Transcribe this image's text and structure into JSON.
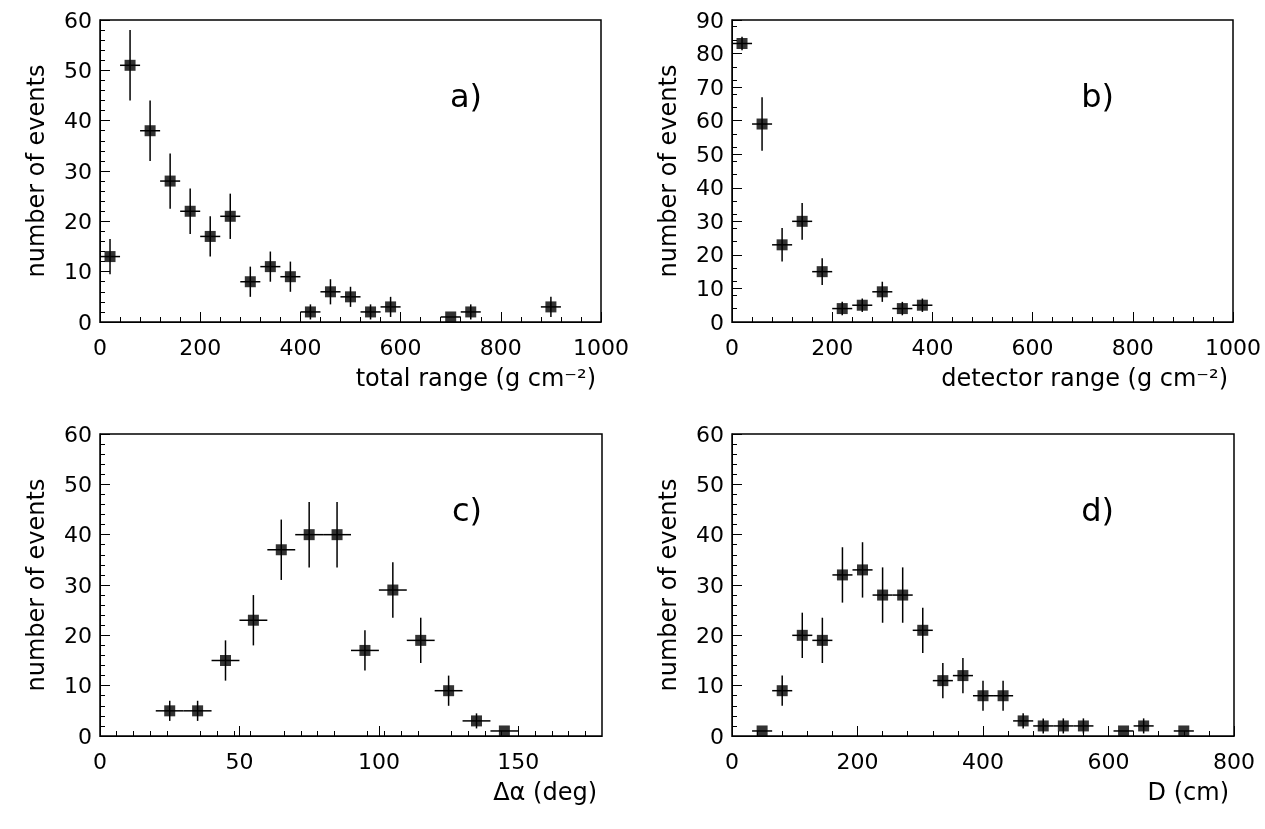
{
  "chart_data": [
    {
      "type": "scatter",
      "xlabel": "total range (g cm⁻²)",
      "ylabel": "number of events",
      "annotations": [
        "a)"
      ],
      "marker": "square",
      "grid": false,
      "xlim": [
        0,
        1000
      ],
      "xticks": [
        0,
        200,
        400,
        600,
        800,
        1000
      ],
      "ylim": [
        0,
        60
      ],
      "yticks": [
        0,
        10,
        20,
        30,
        40,
        50,
        60
      ],
      "x": [
        20,
        60,
        100,
        140,
        180,
        220,
        260,
        300,
        340,
        380,
        420,
        460,
        500,
        540,
        580,
        700,
        740,
        900
      ],
      "series": [
        {
          "color": "#000000",
          "values": [
            13,
            51,
            38,
            28,
            22,
            17,
            21,
            8,
            11,
            9,
            2,
            6,
            5,
            2,
            3,
            1,
            2,
            3
          ],
          "errors": [
            3.5,
            7,
            6,
            5.5,
            4.5,
            4,
            4.5,
            3,
            3,
            3,
            1.5,
            2.5,
            2,
            1.5,
            2,
            null,
            1.5,
            2
          ],
          "xerrors": [
            20,
            20,
            20,
            20,
            20,
            20,
            20,
            20,
            20,
            20,
            20,
            20,
            20,
            20,
            20,
            20,
            20,
            20
          ]
        }
      ]
    },
    {
      "type": "scatter",
      "xlabel": "detector range (g cm⁻²)",
      "ylabel": "number of events",
      "annotations": [
        "b)"
      ],
      "marker": "square",
      "grid": false,
      "xlim": [
        0,
        1000
      ],
      "xticks": [
        0,
        200,
        400,
        600,
        800,
        1000
      ],
      "ylim": [
        0,
        90
      ],
      "yticks": [
        0,
        10,
        20,
        30,
        40,
        50,
        60,
        70,
        80,
        90
      ],
      "x": [
        20,
        60,
        100,
        140,
        180,
        220,
        260,
        300,
        340,
        380
      ],
      "series": [
        {
          "color": "#000000",
          "values": [
            83,
            59,
            23,
            30,
            15,
            4,
            5,
            9,
            4,
            5
          ],
          "errors": [
            2,
            8,
            5,
            5.5,
            4,
            2,
            2,
            3,
            2,
            2
          ],
          "xerrors": [
            20,
            20,
            20,
            20,
            20,
            20,
            20,
            20,
            20,
            20
          ]
        }
      ]
    },
    {
      "type": "scatter",
      "xlabel": "Δα (deg)",
      "ylabel": "number of events",
      "annotations": [
        "c)"
      ],
      "marker": "square",
      "grid": false,
      "xlim": [
        0,
        180
      ],
      "xticks": [
        0,
        50,
        100,
        150
      ],
      "ylim": [
        0,
        60
      ],
      "yticks": [
        0,
        10,
        20,
        30,
        40,
        50,
        60
      ],
      "x": [
        25,
        35,
        45,
        55,
        65,
        75,
        85,
        95,
        105,
        115,
        125,
        135,
        145
      ],
      "series": [
        {
          "color": "#000000",
          "values": [
            5,
            5,
            15,
            23,
            37,
            40,
            40,
            17,
            29,
            19,
            9,
            3,
            1
          ],
          "errors": [
            2,
            2,
            4,
            5,
            6,
            6.5,
            6.5,
            4,
            5.5,
            4.5,
            3,
            1.5,
            null
          ],
          "xerrors": [
            5,
            5,
            5,
            5,
            5,
            5,
            5,
            5,
            5,
            5,
            5,
            5,
            5
          ]
        }
      ]
    },
    {
      "type": "scatter",
      "xlabel": "D (cm)",
      "ylabel": "number of events",
      "annotations": [
        "d)"
      ],
      "marker": "square",
      "grid": false,
      "xlim": [
        0,
        800
      ],
      "xticks": [
        0,
        200,
        400,
        600,
        800
      ],
      "ylim": [
        0,
        60
      ],
      "yticks": [
        0,
        10,
        20,
        30,
        40,
        50,
        60
      ],
      "x": [
        48,
        80,
        112,
        144,
        176,
        208,
        240,
        272,
        304,
        336,
        368,
        400,
        432,
        464,
        496,
        528,
        560,
        624,
        656,
        720
      ],
      "series": [
        {
          "color": "#000000",
          "values": [
            1,
            9,
            20,
            19,
            32,
            33,
            28,
            28,
            21,
            11,
            12,
            8,
            8,
            3,
            2,
            2,
            2,
            1,
            2,
            1
          ],
          "errors": [
            null,
            3,
            4.5,
            4.5,
            5.5,
            5.5,
            5.5,
            5.5,
            4.5,
            3.5,
            3.5,
            3,
            3,
            1.5,
            1.5,
            1.5,
            1.5,
            null,
            1.5,
            null
          ],
          "xerrors": [
            16,
            16,
            16,
            16,
            16,
            16,
            16,
            16,
            16,
            16,
            16,
            16,
            16,
            16,
            16,
            16,
            16,
            16,
            16,
            16
          ]
        }
      ]
    }
  ]
}
